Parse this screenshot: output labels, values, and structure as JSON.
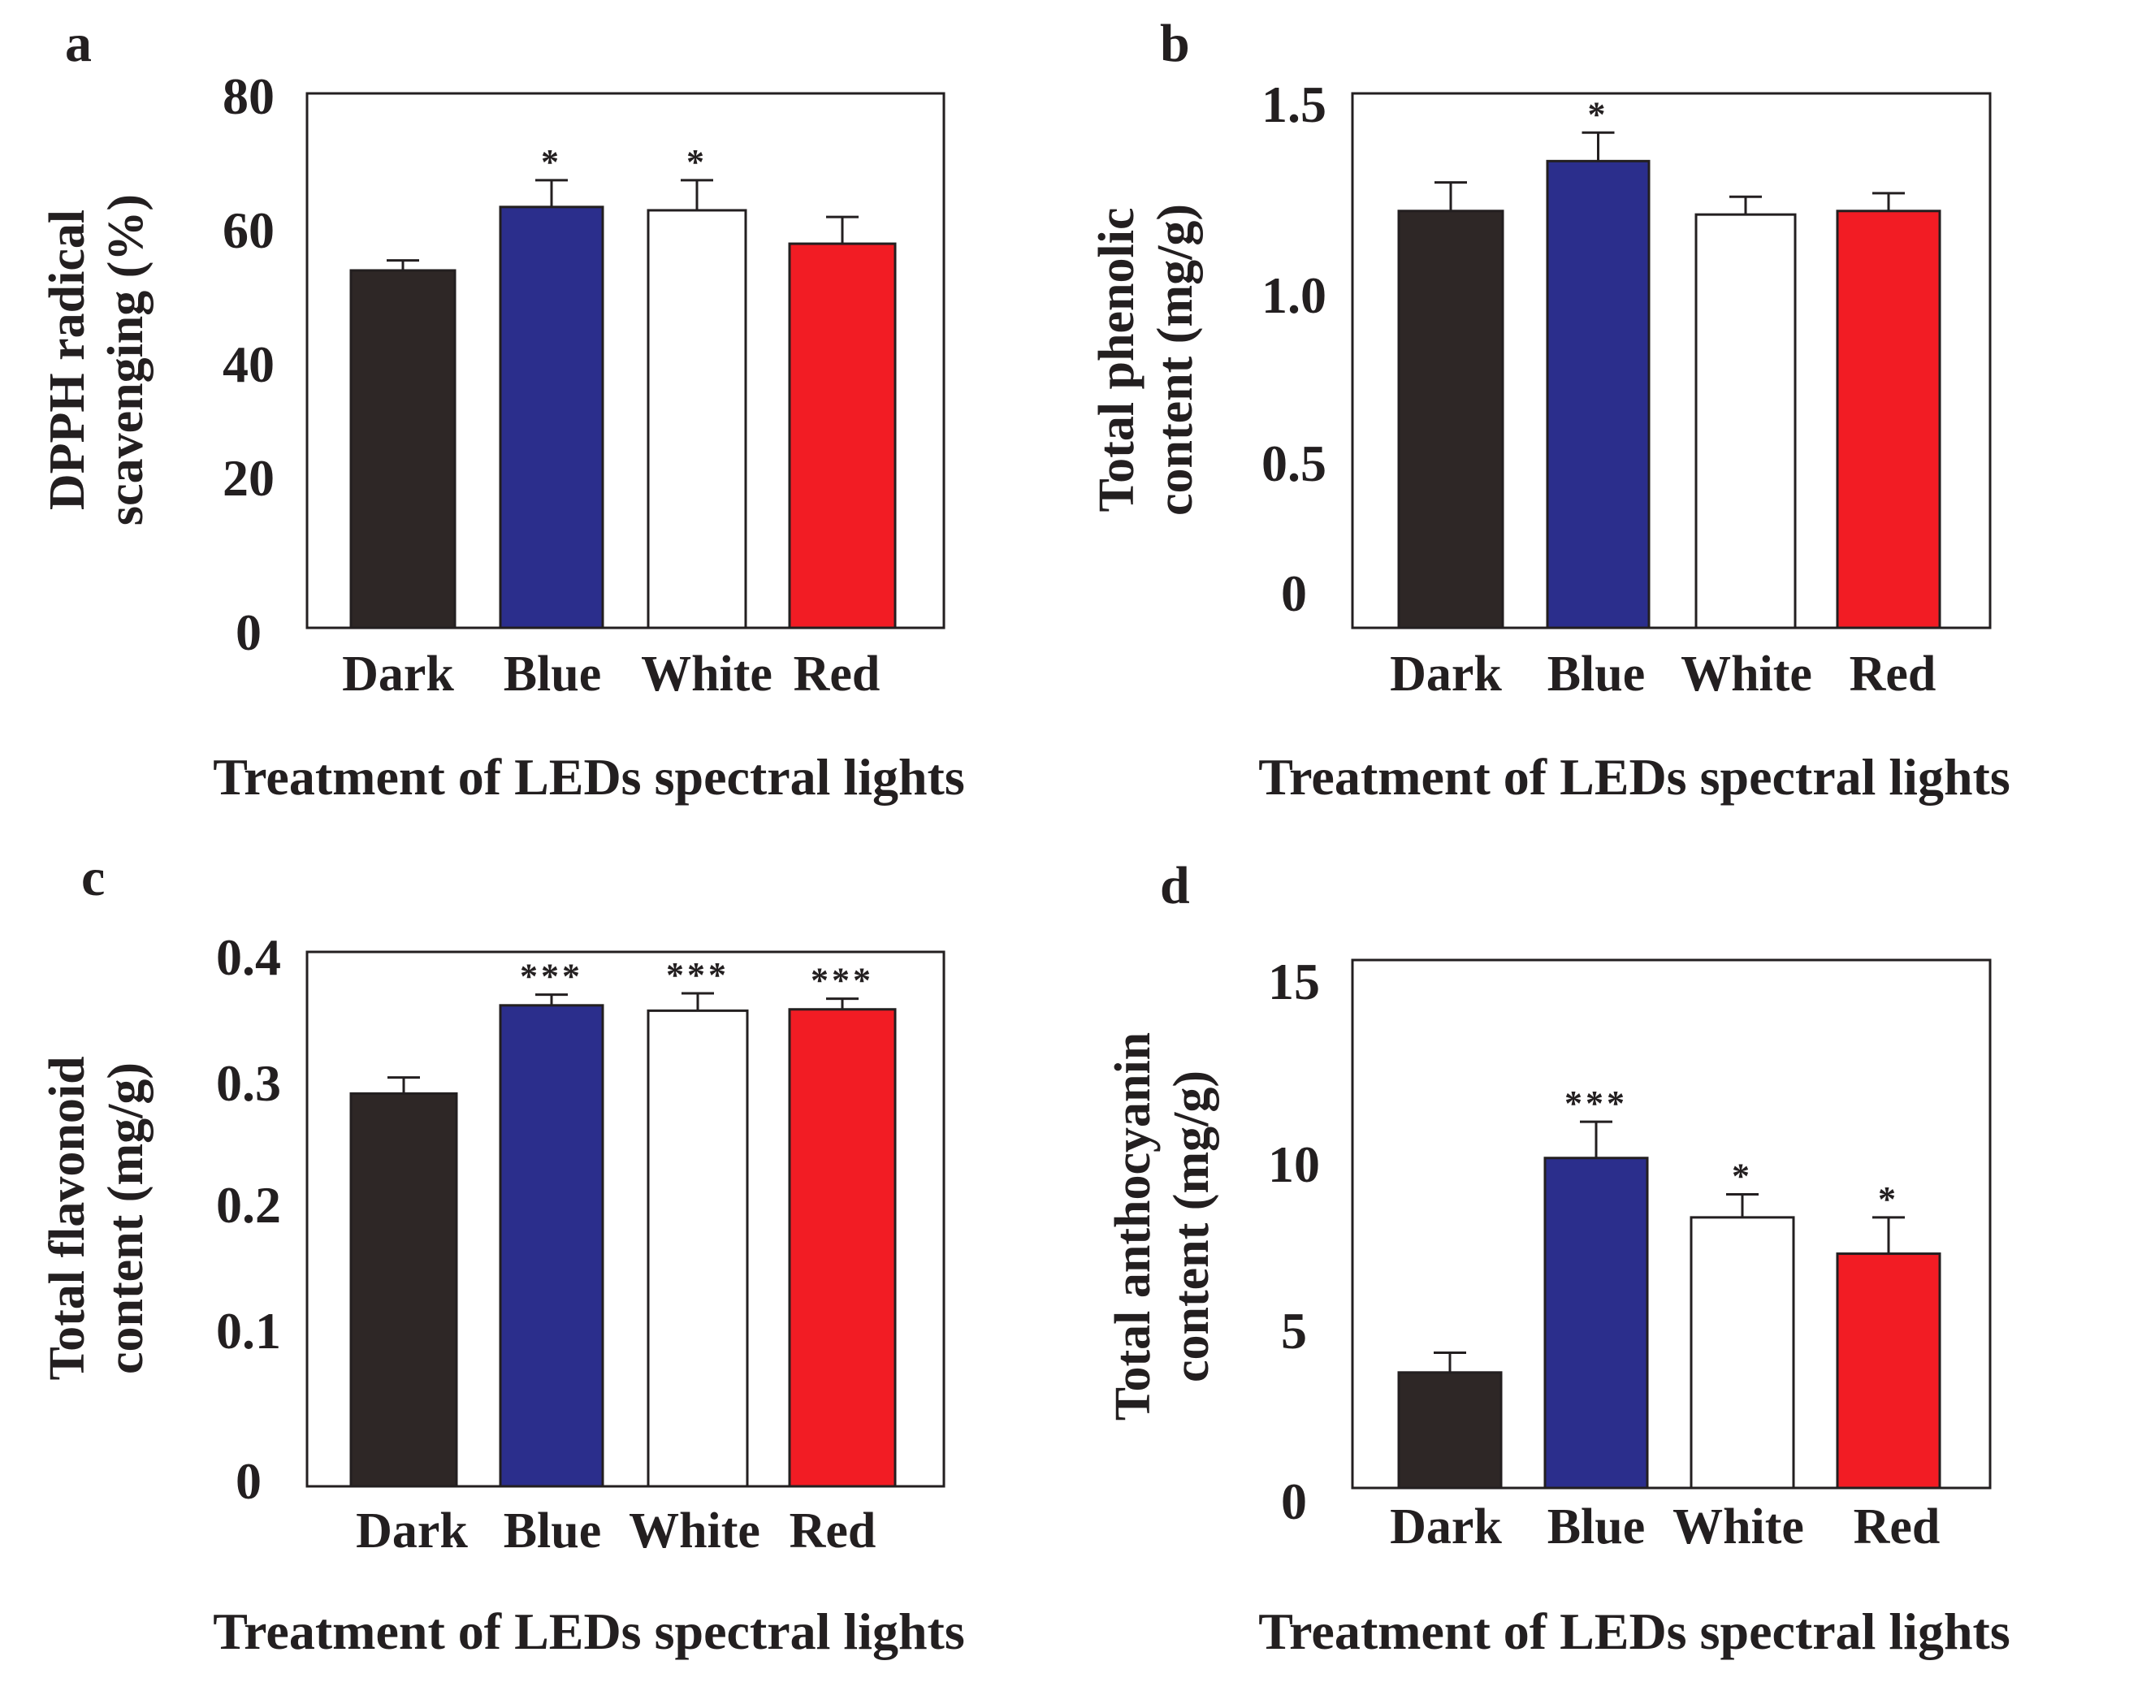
{
  "figure": {
    "colors": {
      "axis": "#231f20",
      "bar_stroke": "#231f20",
      "Dark": "#2e2726",
      "Blue": "#2b2e8c",
      "White": "#ffffff",
      "Red": "#f21c24"
    }
  },
  "chart_data": [
    {
      "panel_label": "a",
      "type": "bar",
      "categories": [
        "Dark",
        "Blue",
        "White",
        "Red"
      ],
      "values": [
        53.5,
        63,
        62.5,
        57.5
      ],
      "errors": [
        1.5,
        4,
        4.5,
        4
      ],
      "significance": [
        "",
        "*",
        "*",
        ""
      ],
      "ylim": [
        0,
        80
      ],
      "yticks": [
        "0",
        "20",
        "40",
        "60",
        "80"
      ],
      "ylabel_lines": [
        "DPPH radical",
        "scavenging (%)"
      ],
      "xlabel": "Treatment of LEDs spectral lights",
      "title": ""
    },
    {
      "panel_label": "b",
      "type": "bar",
      "categories": [
        "Dark",
        "Blue",
        "White",
        "Red"
      ],
      "values": [
        1.17,
        1.31,
        1.16,
        1.17
      ],
      "errors": [
        0.08,
        0.08,
        0.05,
        0.05
      ],
      "significance": [
        "",
        "*",
        "",
        ""
      ],
      "ylim": [
        0,
        1.5
      ],
      "yticks": [
        "0",
        "0.5",
        "1.0",
        "1.5"
      ],
      "ylabel_lines": [
        "Total phenolic",
        "content (mg/g)"
      ],
      "xlabel": "Treatment of LEDs spectral lights",
      "title": ""
    },
    {
      "panel_label": "c",
      "type": "bar",
      "categories": [
        "Dark",
        "Blue",
        "White",
        "Red"
      ],
      "values": [
        0.294,
        0.36,
        0.356,
        0.357
      ],
      "errors": [
        0.012,
        0.008,
        0.013,
        0.008
      ],
      "significance": [
        "",
        "***",
        "***",
        "***"
      ],
      "ylim": [
        0,
        0.4
      ],
      "yticks": [
        "0",
        "0.1",
        "0.2",
        "0.3",
        "0.4"
      ],
      "ylabel_lines": [
        "Total flavonoid",
        "content (mg/g)"
      ],
      "xlabel": "Treatment of LEDs spectral lights",
      "title": ""
    },
    {
      "panel_label": "d",
      "type": "bar",
      "categories": [
        "Dark",
        "Blue",
        "White",
        "Red"
      ],
      "values": [
        3.5,
        10,
        8.2,
        7.1
      ],
      "errors": [
        0.6,
        1.1,
        0.7,
        1.1
      ],
      "significance": [
        "",
        "***",
        "*",
        "*"
      ],
      "ylim": [
        0,
        16
      ],
      "yticks": [
        "0",
        "5",
        "10",
        "15"
      ],
      "ytick_values": [
        0,
        5,
        10,
        15
      ],
      "ylabel_lines": [
        "Total anthocyanin",
        "content (mg/g)"
      ],
      "xlabel": "Treatment of LEDs spectral lights",
      "title": ""
    }
  ]
}
